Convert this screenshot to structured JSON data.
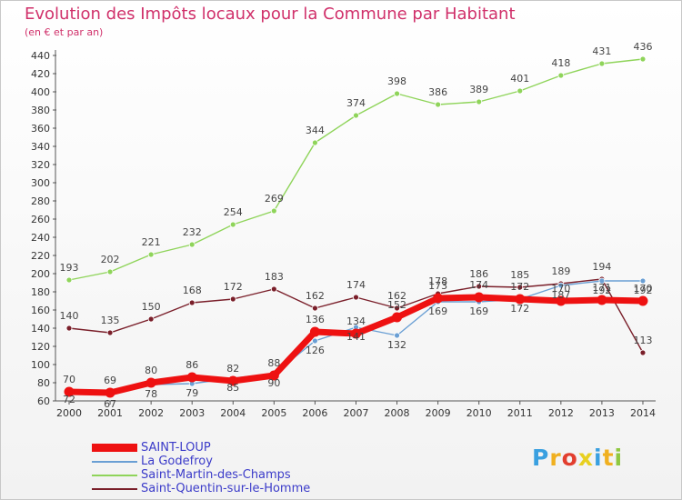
{
  "chart_data": {
    "type": "line",
    "title": "Evolution des Impôts locaux pour la Commune par Habitant",
    "subtitle": "(en € et par an)",
    "xlabel": "",
    "ylabel": "",
    "x": [
      "2000",
      "2001",
      "2002",
      "2003",
      "2004",
      "2005",
      "2006",
      "2007",
      "2008",
      "2009",
      "2010",
      "2011",
      "2012",
      "2013",
      "2014"
    ],
    "ylim": [
      60,
      440
    ],
    "yticks": [
      60,
      80,
      100,
      120,
      140,
      160,
      180,
      200,
      220,
      240,
      260,
      280,
      300,
      320,
      340,
      360,
      380,
      400,
      420,
      440
    ],
    "grid": false,
    "legend_position": "bottom-left",
    "series": [
      {
        "name": "SAINT-LOUP",
        "color": "#ee1111",
        "values": [
          70,
          69,
          80,
          86,
          82,
          88,
          136,
          134,
          152,
          173,
          174,
          172,
          170,
          171,
          170
        ]
      },
      {
        "name": "La Godefroy",
        "color": "#6a9fd4",
        "values": [
          72,
          67,
          78,
          79,
          85,
          90,
          126,
          141,
          132,
          169,
          169,
          172,
          187,
          192,
          192
        ]
      },
      {
        "name": "Saint-Martin-des-Champs",
        "color": "#8fd45a",
        "values": [
          193,
          202,
          221,
          232,
          254,
          269,
          344,
          374,
          398,
          386,
          389,
          401,
          418,
          431,
          436
        ]
      },
      {
        "name": "Saint-Quentin-sur-le-Homme",
        "color": "#7a1f2a",
        "values": [
          140,
          135,
          150,
          168,
          172,
          183,
          162,
          174,
          162,
          178,
          186,
          185,
          189,
          194,
          113
        ]
      }
    ]
  },
  "brand": {
    "letters": [
      "P",
      "r",
      "o",
      "x",
      "i",
      "t",
      "i"
    ],
    "colors": [
      "#3aa0e0",
      "#f0b020",
      "#e23e2e",
      "#e8d020",
      "#3aa0e0",
      "#f0b020",
      "#8fc840"
    ]
  }
}
